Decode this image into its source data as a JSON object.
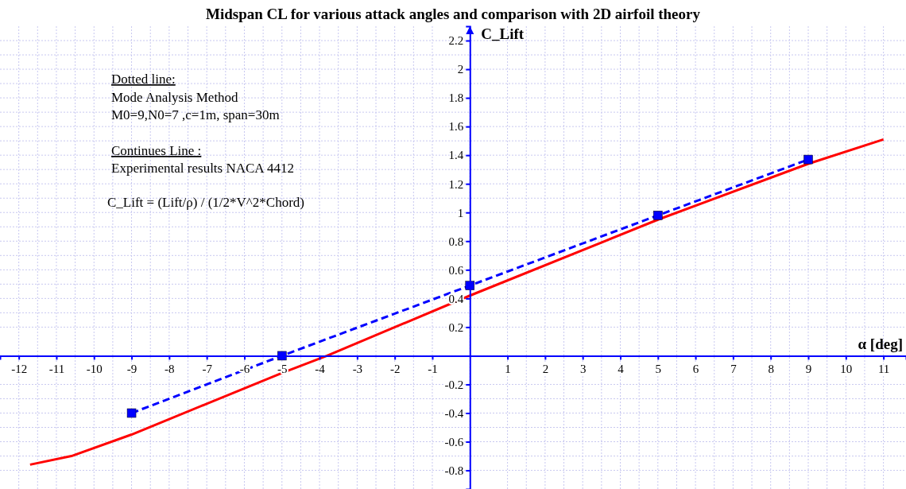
{
  "chart_data": {
    "type": "line",
    "title": "Midspan CL for various attack angles and comparison with 2D airfoil theory",
    "xlabel": "α [deg]",
    "ylabel": "C_Lift",
    "xlim": [
      -12.5,
      11.6
    ],
    "ylim": [
      -0.93,
      2.3
    ],
    "xticks": [
      -12,
      -11,
      -10,
      -9,
      -8,
      -7,
      -6,
      -5,
      -4,
      -3,
      -2,
      -1,
      1,
      2,
      3,
      4,
      5,
      6,
      7,
      8,
      9,
      10,
      11
    ],
    "yticks": [
      -0.8,
      -0.6,
      -0.4,
      -0.2,
      0.2,
      0.4,
      0.6,
      0.8,
      1,
      1.2,
      1.4,
      1.6,
      1.8,
      2,
      2.2
    ],
    "grid": true,
    "series": [
      {
        "color": "#ff0000",
        "x": [
          -11.7,
          -10.6,
          -9,
          -5,
          -3.8,
          0,
          5,
          9,
          11
        ],
        "values": [
          -0.76,
          -0.7,
          -0.55,
          -0.12,
          0,
          0.42,
          0.95,
          1.34,
          1.51
        ],
        "line_style": "solid",
        "marker": "none"
      },
      {
        "color": "#0000ff",
        "x": [
          -9,
          -5,
          0,
          5,
          9
        ],
        "values": [
          -0.4,
          0,
          0.49,
          0.98,
          1.37
        ],
        "line_style": "dashed",
        "marker": "square"
      }
    ],
    "annotations": [
      "Dotted line:",
      "Mode Analysis Method",
      "M0=9,N0=7 ,c=1m, span=30m",
      "Continues Line :",
      "Experimental results NACA 4412",
      "C_Lift = (Lift/ρ) / (1/2*V^2*Chord)"
    ]
  }
}
